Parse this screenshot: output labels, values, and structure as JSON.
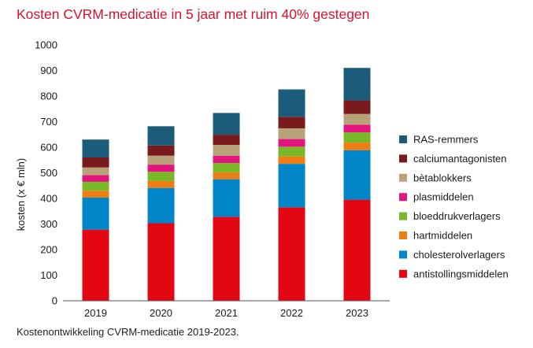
{
  "chart_data": {
    "type": "bar",
    "stacked": true,
    "title": "Kosten CVRM-medicatie in 5 jaar met ruim 40% gestegen",
    "caption": "Kostenontwikkeling CVRM-medicatie 2019-2023.",
    "xlabel": "",
    "ylabel": "kosten (x € mln)",
    "ylim": [
      0,
      1000
    ],
    "yticks": [
      0,
      100,
      200,
      300,
      400,
      500,
      600,
      700,
      800,
      900,
      1000
    ],
    "yticklabels": [
      "0",
      "100",
      "200",
      "300",
      "400",
      "500",
      "600",
      "700",
      "800",
      "900",
      "1000"
    ],
    "grid": false,
    "legend_position": "right",
    "categories": [
      "2019",
      "2020",
      "2021",
      "2022",
      "2023"
    ],
    "series": [
      {
        "name": "antistollingsmiddelen",
        "color": "#e30613",
        "values": [
          278,
          303,
          328,
          365,
          395
        ]
      },
      {
        "name": "cholesterolverlagers",
        "color": "#0085c8",
        "values": [
          125,
          138,
          147,
          170,
          193
        ]
      },
      {
        "name": "hartmiddelen",
        "color": "#f07c14",
        "values": [
          27,
          27,
          27,
          29,
          30
        ]
      },
      {
        "name": "bloeddrukverlagers",
        "color": "#79b928",
        "values": [
          35,
          36,
          36,
          38,
          40
        ]
      },
      {
        "name": "plasmiddelen",
        "color": "#e2157e",
        "values": [
          26,
          28,
          29,
          30,
          30
        ]
      },
      {
        "name": "bètablokkers",
        "color": "#b8a27a",
        "values": [
          30,
          35,
          42,
          42,
          42
        ]
      },
      {
        "name": "calciumantagonisten",
        "color": "#7a1a1c",
        "values": [
          39,
          40,
          40,
          45,
          53
        ]
      },
      {
        "name": "RAS-remmers",
        "color": "#1b5c7a",
        "values": [
          70,
          75,
          85,
          107,
          127
        ]
      }
    ]
  }
}
